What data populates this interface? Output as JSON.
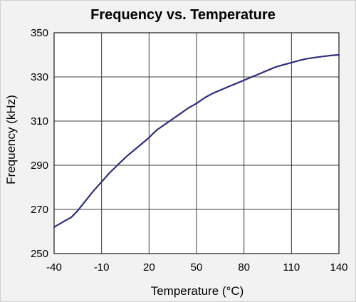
{
  "chart_data": {
    "type": "line",
    "title": "Frequency vs. Temperature",
    "xlabel": "Temperature (°C)",
    "ylabel": "Frequency (kHz)",
    "xlim": [
      -40,
      140
    ],
    "ylim": [
      250,
      350
    ],
    "x_ticks": [
      -40,
      -10,
      20,
      50,
      80,
      110,
      140
    ],
    "y_ticks": [
      250,
      270,
      290,
      310,
      330,
      350
    ],
    "grid": true,
    "legend": "none",
    "series_color": "#2e2e7e",
    "series": [
      {
        "x": [
          -40,
          -34,
          -29,
          -25,
          -20,
          -15,
          -10,
          -5,
          0,
          5,
          10,
          15,
          20,
          22,
          25,
          30,
          35,
          40,
          45,
          50,
          55,
          60,
          65,
          70,
          75,
          80,
          85,
          90,
          95,
          100,
          105,
          110,
          115,
          120,
          125,
          130,
          135,
          140
        ],
        "y": [
          262,
          264.5,
          266.5,
          269.5,
          274,
          278.5,
          282.5,
          286.5,
          290,
          293.5,
          296.5,
          299.5,
          302.5,
          304,
          306,
          308.5,
          311,
          313.5,
          316,
          318,
          320.5,
          322.5,
          324,
          325.5,
          327,
          328.5,
          330,
          331.5,
          333,
          334.5,
          335.5,
          336.5,
          337.5,
          338.3,
          338.8,
          339.3,
          339.7,
          340
        ]
      }
    ]
  }
}
